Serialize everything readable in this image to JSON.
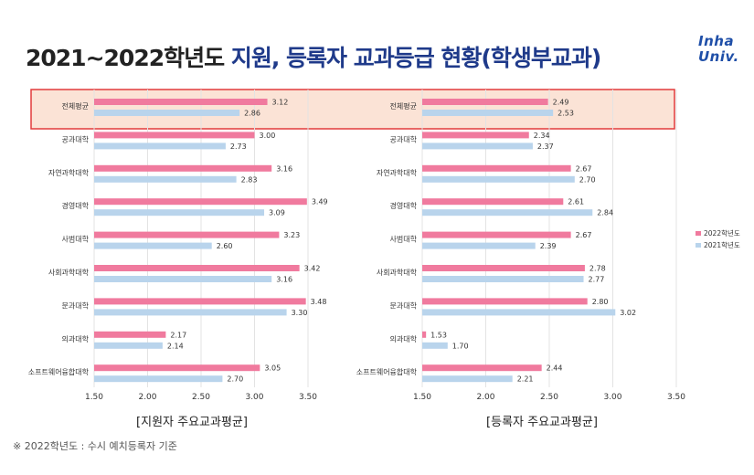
{
  "header": {
    "title_black": "2021~2022학년도",
    "title_blue": "지원, 등록자 교과등급 현황(학생부교과)"
  },
  "logo": {
    "line1": "Inha",
    "line2": "Univ."
  },
  "footnote": "※ 2022학년도 : 수시 예치등록자 기준",
  "colors": {
    "s2022": "#f07a9e",
    "s2021": "#b9d4ec",
    "highlight_fill": "#fbe3d6",
    "highlight_border": "#e23b3b",
    "title_blue": "#1f3a8a"
  },
  "chart_data": [
    {
      "type": "bar",
      "orientation": "horizontal",
      "title": "[지원자 주요교과평균]",
      "categories": [
        "전체평균",
        "공과대학",
        "자연과학대학",
        "경영대학",
        "사범대학",
        "사회과학대학",
        "문과대학",
        "의과대학",
        "소프트웨어융합대학"
      ],
      "highlight_category": "전체평균",
      "series": [
        {
          "name": "2022학년도",
          "values": [
            3.12,
            3.0,
            3.16,
            3.49,
            3.23,
            3.42,
            3.48,
            2.17,
            3.05
          ],
          "labels": [
            "3.12",
            "3.00",
            "3.16",
            "3.49",
            "3.23",
            "3.42",
            "3.48",
            "2.17",
            "3.05"
          ]
        },
        {
          "name": "2021학년도",
          "values": [
            2.86,
            2.73,
            2.83,
            3.09,
            2.6,
            3.16,
            3.3,
            2.14,
            2.7
          ],
          "labels": [
            "2.86",
            "2.73",
            "2.83",
            "3.09",
            "2.60",
            "3.16",
            "3.30",
            "2.14",
            "2.70"
          ]
        }
      ],
      "xlim": [
        1.5,
        3.5
      ],
      "xticks": [
        "1.50",
        "2.00",
        "2.50",
        "3.00",
        "3.50"
      ]
    },
    {
      "type": "bar",
      "orientation": "horizontal",
      "title": "[등록자 주요교과평균]",
      "categories": [
        "전체평균",
        "공과대학",
        "자연과학대학",
        "경영대학",
        "사범대학",
        "사회과학대학",
        "문과대학",
        "의과대학",
        "소프트웨어융합대학"
      ],
      "highlight_category": "전체평균",
      "series": [
        {
          "name": "2022학년도",
          "values": [
            2.49,
            2.34,
            2.67,
            2.61,
            2.67,
            2.78,
            2.8,
            1.53,
            2.44
          ],
          "labels": [
            "2.49",
            "2.34",
            "2.67",
            "2.61",
            "2.67",
            "2.78",
            "2.80",
            "1.53",
            "2.44"
          ]
        },
        {
          "name": "2021학년도",
          "values": [
            2.53,
            2.37,
            2.7,
            2.84,
            2.39,
            2.77,
            3.02,
            1.7,
            2.21
          ],
          "labels": [
            "2.53",
            "2.37",
            "2.70",
            "2.84",
            "2.39",
            "2.77",
            "3.02",
            "1.70",
            "2.21"
          ]
        }
      ],
      "xlim": [
        1.5,
        3.5
      ],
      "xticks": [
        "1.50",
        "2.00",
        "2.50",
        "3.00",
        "3.50"
      ]
    }
  ],
  "legend": {
    "items": [
      "2022학년도",
      "2021학년도"
    ],
    "position": "right"
  }
}
